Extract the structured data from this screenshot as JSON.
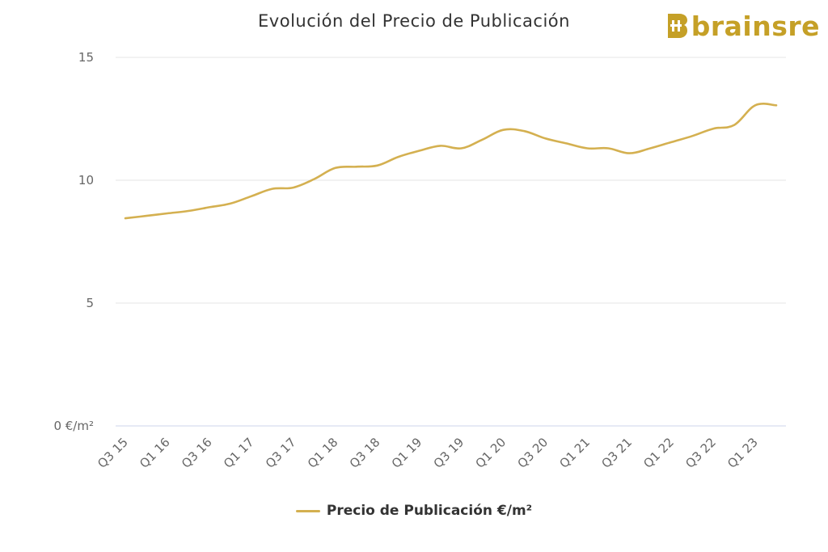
{
  "header": {
    "title": "Evolución del Precio de Publicación",
    "brand": "brainsre"
  },
  "colors": {
    "line": "#d4b050",
    "brand": "#c5a027",
    "grid": "#e6e6e6",
    "baseline": "#ccd6eb"
  },
  "chart_data": {
    "type": "line",
    "title": "Evolución del Precio de Publicación",
    "ylim": [
      0,
      15
    ],
    "yticks": [
      {
        "value": 0,
        "label": "0 €/m²"
      },
      {
        "value": 5,
        "label": "5"
      },
      {
        "value": 10,
        "label": "10"
      },
      {
        "value": 15,
        "label": "15"
      }
    ],
    "x": [
      "Q3 15",
      "Q4 15",
      "Q1 16",
      "Q2 16",
      "Q3 16",
      "Q4 16",
      "Q1 17",
      "Q2 17",
      "Q3 17",
      "Q4 17",
      "Q1 18",
      "Q2 18",
      "Q3 18",
      "Q4 18",
      "Q1 19",
      "Q2 19",
      "Q3 19",
      "Q4 19",
      "Q1 20",
      "Q2 20",
      "Q3 20",
      "Q4 20",
      "Q1 21",
      "Q2 21",
      "Q3 21",
      "Q4 21",
      "Q1 22",
      "Q2 22",
      "Q3 22",
      "Q4 22",
      "Q1 23",
      "Q2 23"
    ],
    "xtick_labels": [
      "Q3 15",
      "Q1 16",
      "Q3 16",
      "Q1 17",
      "Q3 17",
      "Q1 18",
      "Q3 18",
      "Q1 19",
      "Q3 19",
      "Q1 20",
      "Q3 20",
      "Q1 21",
      "Q3 21",
      "Q1 22",
      "Q3 22",
      "Q1 23"
    ],
    "series": [
      {
        "name": "Precio de Publicación €/m²",
        "values": [
          8.45,
          8.55,
          8.65,
          8.75,
          8.9,
          9.05,
          9.35,
          9.65,
          9.7,
          10.05,
          10.5,
          10.55,
          10.6,
          10.95,
          11.2,
          11.4,
          11.3,
          11.65,
          12.05,
          12.0,
          11.7,
          11.5,
          11.3,
          11.3,
          11.1,
          11.3,
          11.55,
          11.8,
          12.1,
          12.25,
          13.05,
          13.05
        ]
      }
    ],
    "legend": {
      "position": "bottom-center",
      "label": "Precio de Publicación €/m²"
    },
    "grid": true
  }
}
